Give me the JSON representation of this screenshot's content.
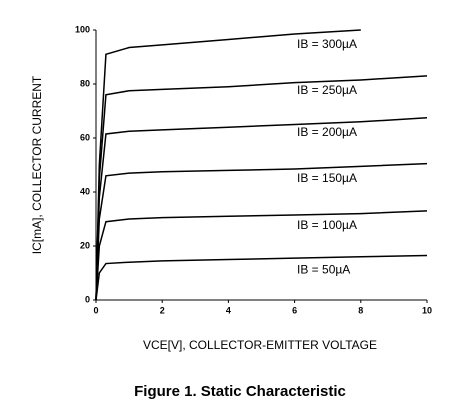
{
  "chart_data": {
    "type": "line",
    "title": "Figure 1. Static Characteristic",
    "x_label": "VCE[V], COLLECTOR-EMITTER VOLTAGE",
    "y_label": "IC[mA], COLLECTOR CURRENT",
    "x": [
      0,
      0.1,
      0.3,
      1,
      2,
      4,
      6,
      8,
      10
    ],
    "series": [
      {
        "name": "IB = 300µA",
        "color": "#000000",
        "values": [
          0,
          50,
          91,
          93.5,
          94.5,
          96.5,
          98.5,
          100,
          null
        ]
      },
      {
        "name": "IB = 250µA",
        "color": "#000000",
        "values": [
          0,
          45,
          76,
          77.5,
          78,
          79,
          80.5,
          81.5,
          83
        ]
      },
      {
        "name": "IB = 200µA",
        "color": "#000000",
        "values": [
          0,
          38,
          61.5,
          62.5,
          63,
          64,
          65,
          66,
          67.5
        ]
      },
      {
        "name": "IB = 150µA",
        "color": "#000000",
        "values": [
          0,
          30,
          46,
          47,
          47.5,
          48,
          48.5,
          49.5,
          50.5
        ]
      },
      {
        "name": "IB = 100µA",
        "color": "#000000",
        "values": [
          0,
          20,
          29,
          30,
          30.5,
          31,
          31.5,
          32,
          33
        ]
      },
      {
        "name": "IB = 50µA",
        "color": "#000000",
        "values": [
          0,
          10,
          13.5,
          14,
          14.5,
          15,
          15.5,
          16,
          16.5
        ]
      }
    ],
    "xlim": [
      0,
      10
    ],
    "xticks": [
      0,
      2,
      4,
      6,
      8,
      10
    ],
    "ylim": [
      0,
      100
    ],
    "yticks": [
      0,
      20,
      40,
      60,
      80,
      100
    ]
  }
}
